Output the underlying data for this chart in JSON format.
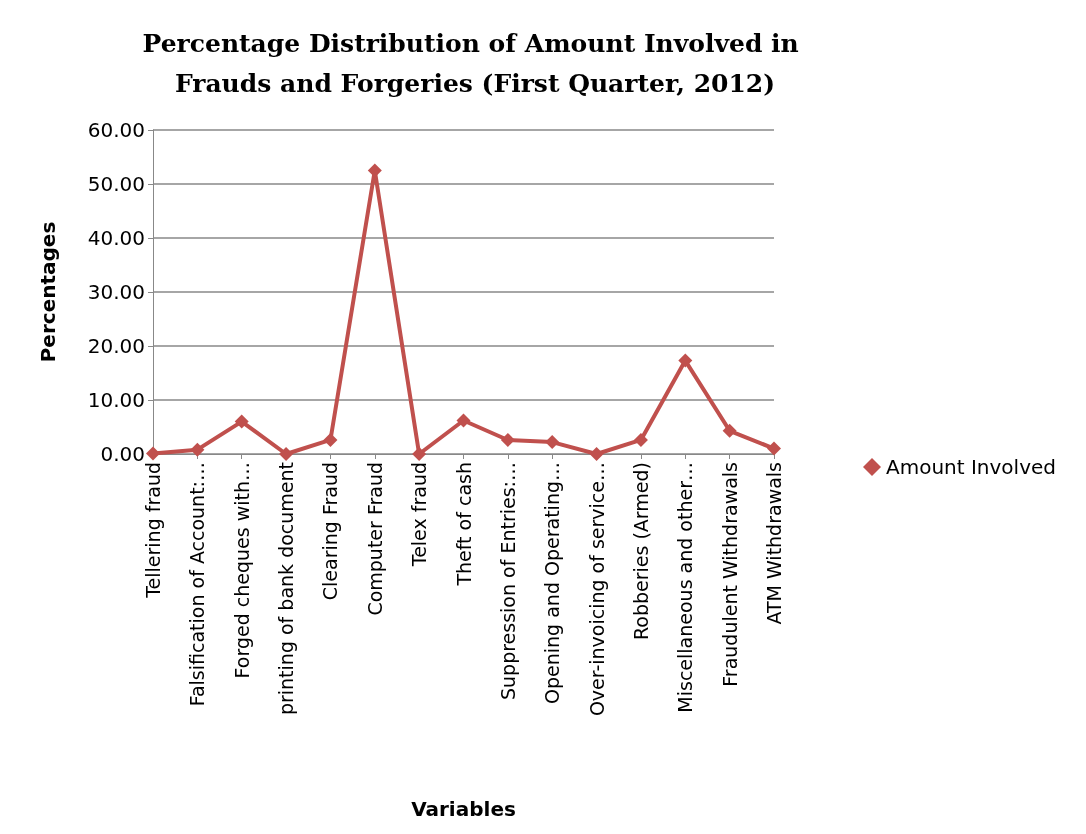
{
  "chart_data": {
    "type": "line",
    "title": "Percentage Distribution of Amount Involved in Frauds and Forgeries (First Quarter, 2012)",
    "xlabel": "Variables",
    "ylabel": "Percentages",
    "categories": [
      "Tellering fraud",
      "Falsification of Account:…",
      "Forged cheques with…",
      "printing of bank document",
      "Clearing Fraud",
      "Computer Fraud",
      "Telex fraud",
      "Theft of cash",
      "Suppression of Entries:…",
      "Opening and Operating…",
      "Over-invoicing of service…",
      "Robberies (Armed)",
      "Miscellaneous and other…",
      "Fraudulent Withdrawals",
      "ATM Withdrawals"
    ],
    "series": [
      {
        "name": "Amount Involved",
        "color": "#c0504d",
        "values": [
          0.1,
          0.8,
          6.0,
          0.0,
          2.6,
          52.5,
          0.0,
          6.2,
          2.6,
          2.2,
          0.0,
          2.6,
          17.3,
          4.3,
          1.0
        ]
      }
    ],
    "ylim": [
      0,
      60
    ],
    "yticks": [
      {
        "value": 0,
        "label": "0.00"
      },
      {
        "value": 10,
        "label": "10.00"
      },
      {
        "value": 20,
        "label": "20.00"
      },
      {
        "value": 30,
        "label": "30.00"
      },
      {
        "value": 40,
        "label": "40.00"
      },
      {
        "value": 50,
        "label": "50.00"
      },
      {
        "value": 60,
        "label": "60.00"
      }
    ],
    "grid": "y",
    "legend": "right",
    "marker": "diamond",
    "line_style": "solid"
  }
}
